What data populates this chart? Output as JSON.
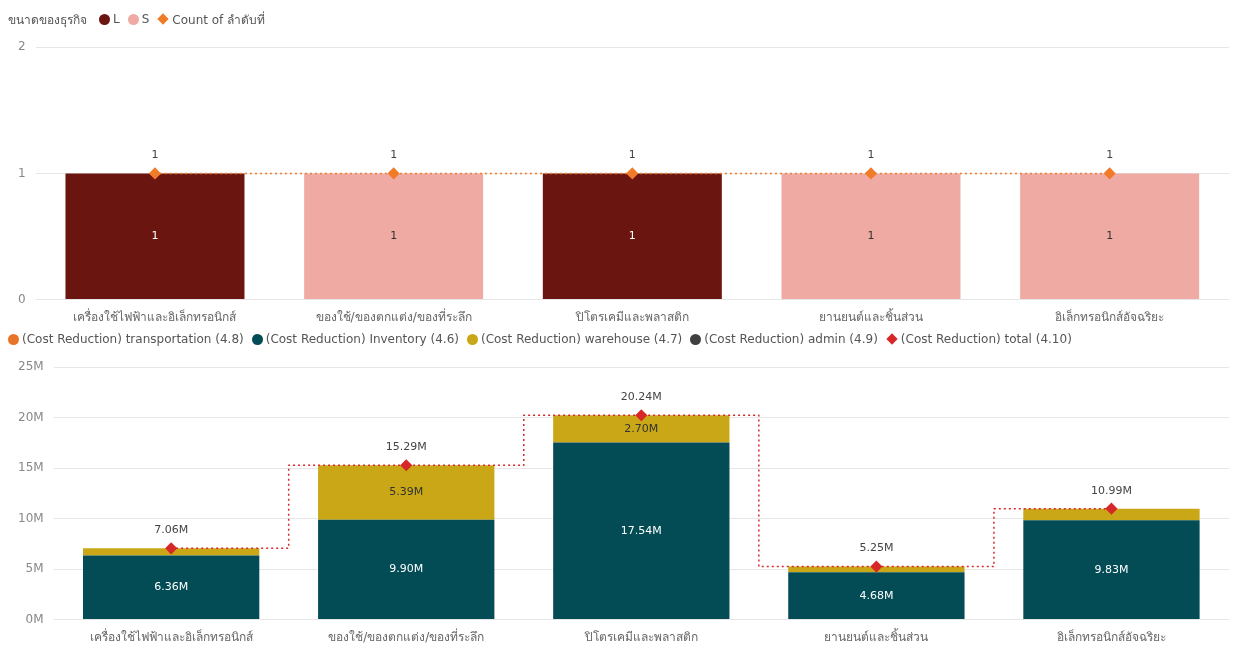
{
  "chart_data": [
    {
      "type": "bar",
      "legend_title": "ขนาดของธุรกิจ",
      "legend": "top left",
      "categories": [
        "เครื่องใช้ไฟฟ้าและอิเล็กทรอนิกส์",
        "ของใช้/ของตกแต่ง/ของที่ระลึก",
        "ปิโตรเคมีและพลาสติก",
        "ยานยนต์และชิ้นส่วน",
        "อิเล็กทรอนิกส์อัจฉริยะ"
      ],
      "series": [
        {
          "name": "L",
          "color": "#6b1510",
          "values": [
            1,
            null,
            1,
            null,
            null
          ]
        },
        {
          "name": "S",
          "color": "#eeaaa3",
          "values": [
            null,
            1,
            null,
            1,
            1
          ]
        },
        {
          "name": "Count of ลำดับที่",
          "type": "step",
          "color": "#f07c2a",
          "marker": "diamond",
          "line_style": "dotted",
          "values": [
            1,
            1,
            1,
            1,
            1
          ]
        }
      ],
      "ylim": [
        0,
        2
      ],
      "yticks": [
        0,
        1,
        2
      ],
      "grid": "y",
      "data_labels": true
    },
    {
      "type": "bar",
      "stacked": true,
      "legend": "top left",
      "categories": [
        "เครื่องใช้ไฟฟ้าและอิเล็กทรอนิกส์",
        "ของใช้/ของตกแต่ง/ของที่ระลึก",
        "ปิโตรเคมีและพลาสติก",
        "ยานยนต์และชิ้นส่วน",
        "อิเล็กทรอนิกส์อัจฉริยะ"
      ],
      "series": [
        {
          "name": "(Cost Reduction) transportation (4.8)",
          "color": "#e8742a",
          "values": [
            null,
            null,
            null,
            null,
            null
          ]
        },
        {
          "name": "(Cost Reduction) Inventory (4.6)",
          "color": "#034c55",
          "values": [
            6.36,
            9.9,
            17.54,
            4.68,
            9.83
          ],
          "value_labels": [
            "6.36M",
            "9.90M",
            "17.54M",
            "4.68M",
            "9.83M"
          ]
        },
        {
          "name": "(Cost Reduction) warehouse (4.7)",
          "color": "#c9a716",
          "values": [
            0.7,
            5.39,
            2.7,
            0.57,
            1.16
          ],
          "value_labels": [
            null,
            "5.39M",
            "2.70M",
            null,
            null
          ]
        },
        {
          "name": "(Cost Reduction) admin (4.9)",
          "color": "#404040",
          "values": [
            null,
            null,
            null,
            null,
            null
          ]
        },
        {
          "name": "(Cost Reduction) total (4.10)",
          "type": "step",
          "color": "#d62828",
          "marker": "diamond",
          "line_style": "dotted",
          "values": [
            7.06,
            15.29,
            20.24,
            5.25,
            10.99
          ],
          "value_labels": [
            "7.06M",
            "15.29M",
            "20.24M",
            "5.25M",
            "10.99M"
          ]
        }
      ],
      "ylim": [
        0,
        25
      ],
      "yticks": [
        {
          "value": 0,
          "label": "0M"
        },
        {
          "value": 5,
          "label": "5M"
        },
        {
          "value": 10,
          "label": "10M"
        },
        {
          "value": 15,
          "label": "15M"
        },
        {
          "value": 20,
          "label": "20M"
        },
        {
          "value": 25,
          "label": "25M"
        }
      ],
      "grid": "y"
    }
  ]
}
